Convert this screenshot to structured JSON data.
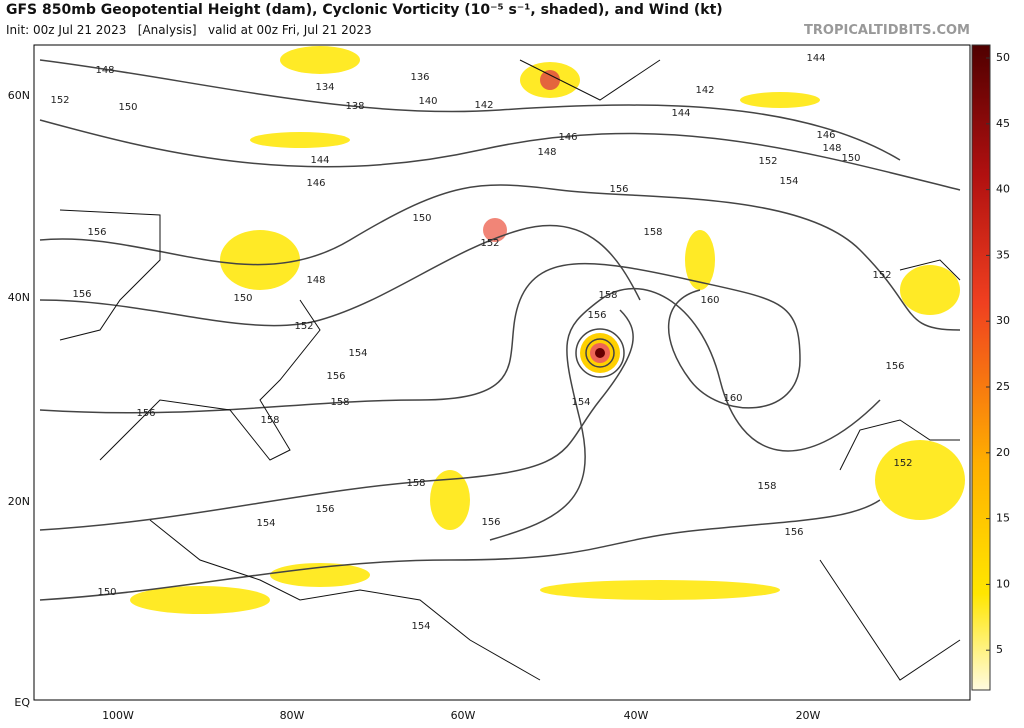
{
  "header": {
    "title": "GFS 850mb Geopotential Height (dam), Cyclonic Vorticity (10⁻⁵ s⁻¹, shaded), and Wind (kt)",
    "subtitle": "Init: 00z Jul 21 2023   [Analysis]   valid at 00z Fri, Jul 21 2023",
    "watermark": "TROPICALTIDBITS.COM"
  },
  "map": {
    "lat_labels": [
      "60N",
      "40N",
      "20N",
      "EQ"
    ],
    "lon_labels": [
      "100W",
      "80W",
      "60W",
      "40W",
      "20W"
    ],
    "contour_labels": [
      "148",
      "152",
      "150",
      "136",
      "134",
      "138",
      "140",
      "142",
      "142",
      "144",
      "144",
      "146",
      "148",
      "146",
      "148",
      "150",
      "152",
      "154",
      "156",
      "158",
      "144",
      "146",
      "150",
      "152",
      "156",
      "156",
      "150",
      "148",
      "152",
      "154",
      "156",
      "158",
      "158",
      "156",
      "160",
      "160",
      "154",
      "156",
      "152",
      "156",
      "158",
      "158",
      "158",
      "156",
      "156",
      "154",
      "156",
      "152",
      "150",
      "154"
    ]
  },
  "colorbar": {
    "ticks": [
      5,
      10,
      15,
      20,
      25,
      30,
      35,
      40,
      45,
      50
    ]
  }
}
